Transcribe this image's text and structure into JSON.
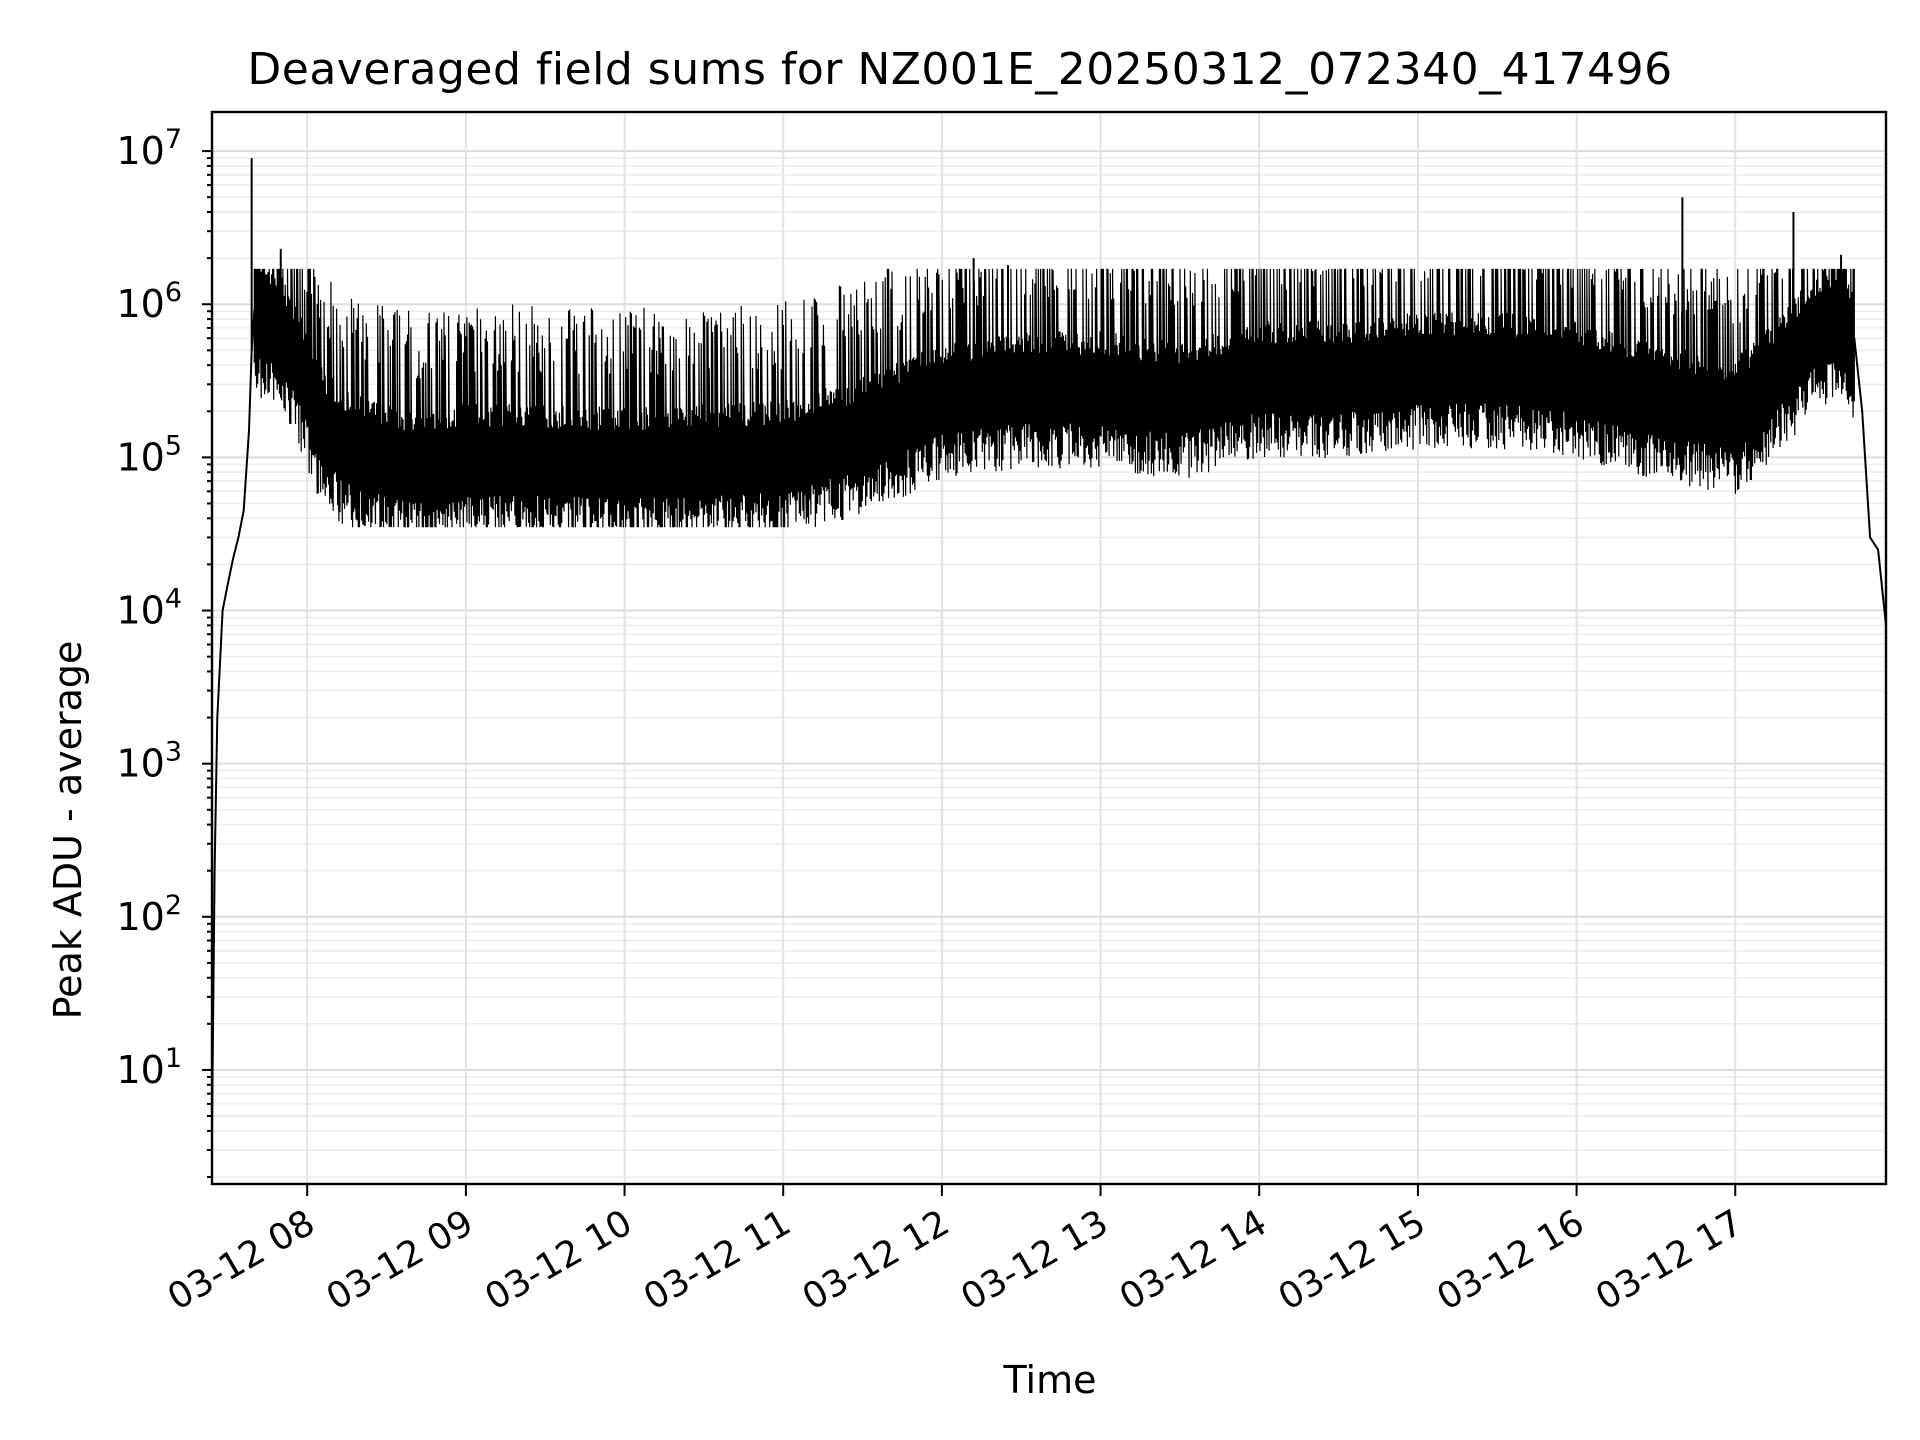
{
  "chart_data": {
    "type": "line",
    "title": "Deaveraged field sums for NZ001E_20250312_072340_417496",
    "xlabel": "Time",
    "ylabel": "Peak ADU - average",
    "yscale": "log",
    "ylim": [
      1.8,
      18000000
    ],
    "xlim": [
      "2025-03-12 07:24",
      "2025-03-12 17:57"
    ],
    "grid": true,
    "legend": "none",
    "line_color": "#000000",
    "x_ticks": [
      "03-12 08",
      "03-12 09",
      "03-12 10",
      "03-12 11",
      "03-12 12",
      "03-12 13",
      "03-12 14",
      "03-12 15",
      "03-12 16",
      "03-12 17"
    ],
    "y_ticks": [
      {
        "base": "10",
        "exp": "1"
      },
      {
        "base": "10",
        "exp": "2"
      },
      {
        "base": "10",
        "exp": "3"
      },
      {
        "base": "10",
        "exp": "4"
      },
      {
        "base": "10",
        "exp": "5"
      },
      {
        "base": "10",
        "exp": "6"
      },
      {
        "base": "10",
        "exp": "7"
      }
    ],
    "series": [
      {
        "x": [
          "2025-03-12 07:24",
          "2025-03-12 07:25",
          "2025-03-12 07:26",
          "2025-03-12 07:28",
          "2025-03-12 07:30",
          "2025-03-12 07:32",
          "2025-03-12 07:34",
          "2025-03-12 07:36",
          "2025-03-12 07:38",
          "2025-03-12 07:39",
          "2025-03-12 07:40",
          "2025-03-12 07:42",
          "2025-03-12 07:45",
          "2025-03-12 07:50",
          "2025-03-12 07:55",
          "2025-03-12 08:05",
          "2025-03-12 08:15",
          "2025-03-12 08:30",
          "2025-03-12 08:45",
          "2025-03-12 09:00",
          "2025-03-12 09:30",
          "2025-03-12 10:00",
          "2025-03-12 10:30",
          "2025-03-12 11:00",
          "2025-03-12 11:30",
          "2025-03-12 12:00",
          "2025-03-12 12:30",
          "2025-03-12 13:00",
          "2025-03-12 13:30",
          "2025-03-12 14:00",
          "2025-03-12 14:30",
          "2025-03-12 15:00",
          "2025-03-12 15:30",
          "2025-03-12 16:00",
          "2025-03-12 16:30",
          "2025-03-12 17:00",
          "2025-03-12 17:15",
          "2025-03-12 17:30",
          "2025-03-12 17:40",
          "2025-03-12 17:45",
          "2025-03-12 17:48",
          "2025-03-12 17:51",
          "2025-03-12 17:54",
          "2025-03-12 17:57"
        ],
        "y": [
          4,
          200,
          2000,
          10000,
          15000,
          22000,
          30000,
          45000,
          150000,
          500000,
          900000,
          800000,
          900000,
          700000,
          500000,
          180000,
          120000,
          100000,
          90000,
          100000,
          100000,
          95000,
          100000,
          105000,
          150000,
          250000,
          300000,
          300000,
          250000,
          350000,
          350000,
          400000,
          400000,
          350000,
          250000,
          200000,
          350000,
          700000,
          900000,
          600000,
          200000,
          30000,
          25000,
          8000
        ]
      }
    ],
    "spikes": [
      {
        "x": "2025-03-12 07:39",
        "y": 9000000
      },
      {
        "x": "2025-03-12 07:50",
        "y": 2300000
      },
      {
        "x": "2025-03-12 12:12",
        "y": 2000000
      },
      {
        "x": "2025-03-12 12:25",
        "y": 1800000
      },
      {
        "x": "2025-03-12 16:40",
        "y": 5000000
      },
      {
        "x": "2025-03-12 17:22",
        "y": 4000000
      },
      {
        "x": "2025-03-12 17:40",
        "y": 2100000
      }
    ]
  }
}
